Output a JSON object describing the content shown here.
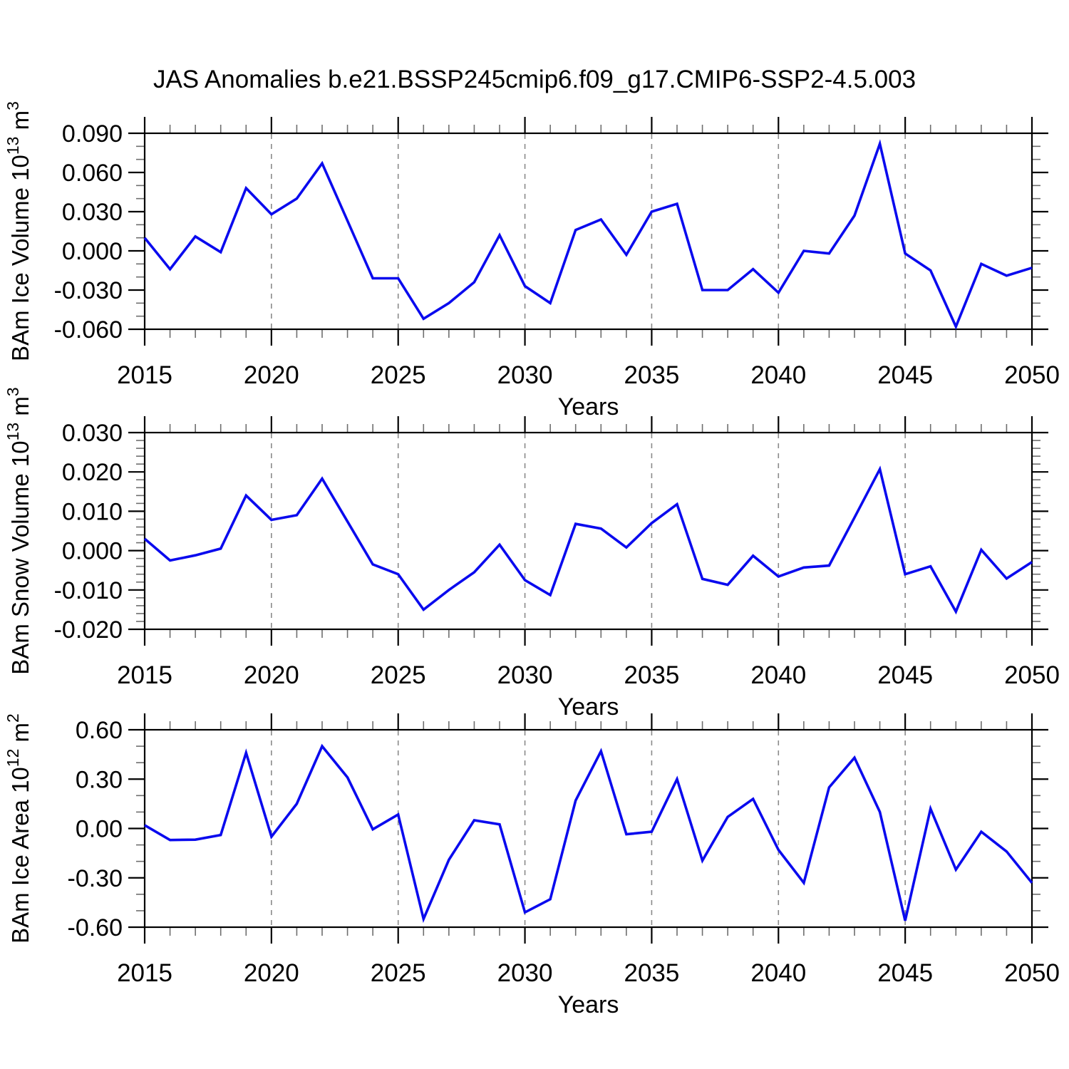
{
  "title": "JAS Anomalies b.e21.BSSP245cmip6.f09_g17.CMIP6-SSP2-4.5.003",
  "style": {
    "line_color": "#0A0AEE",
    "grid_color": "#8a8a8a",
    "axis_color": "#000000",
    "minor_tick_color": "#6e6e6e",
    "text_color": "#000000",
    "background": "#ffffff"
  },
  "chart_data": {
    "type": "line",
    "x_label": "Years",
    "x": [
      2015,
      2016,
      2017,
      2018,
      2019,
      2020,
      2021,
      2022,
      2023,
      2024,
      2025,
      2026,
      2027,
      2028,
      2029,
      2030,
      2031,
      2032,
      2033,
      2034,
      2035,
      2036,
      2037,
      2038,
      2039,
      2040,
      2041,
      2042,
      2043,
      2044,
      2045,
      2046,
      2047,
      2048,
      2049,
      2050
    ],
    "x_major_ticks": [
      2015,
      2020,
      2025,
      2030,
      2035,
      2040,
      2045,
      2050
    ],
    "grid_x": [
      2020,
      2025,
      2030,
      2035,
      2040,
      2045
    ],
    "grid_style": "dashed-vertical",
    "legend": "none",
    "panels": [
      {
        "id": "bam-ice-volume",
        "ylabel": "BAm Ice Volume 10^13^ m^3^",
        "ylim": [
          -0.06,
          0.09
        ],
        "ytick_step": 0.03,
        "yminor_step": 0.01,
        "ytick_labels": [
          "0.090",
          "0.060",
          "0.030",
          "0.000",
          "-0.030",
          "-0.060"
        ],
        "values": [
          0.01,
          -0.014,
          0.011,
          -0.001,
          0.048,
          0.028,
          0.04,
          0.067,
          0.023,
          -0.021,
          -0.021,
          -0.052,
          -0.04,
          -0.024,
          0.012,
          -0.027,
          -0.04,
          0.016,
          0.024,
          -0.003,
          0.03,
          0.036,
          -0.03,
          -0.03,
          -0.014,
          -0.032,
          0.0,
          -0.002,
          0.027,
          0.082,
          -0.002,
          -0.015,
          -0.058,
          -0.01,
          -0.019,
          -0.013
        ]
      },
      {
        "id": "bam-snow-volume",
        "ylabel": "BAm Snow Volume 10^13^ m^3^",
        "ylim": [
          -0.02,
          0.03
        ],
        "ytick_step": 0.01,
        "yminor_step": 0.002,
        "ytick_labels": [
          "0.030",
          "0.020",
          "0.010",
          "0.000",
          "-0.010",
          "-0.020"
        ],
        "values": [
          0.003,
          -0.0025,
          -0.0012,
          0.0005,
          0.014,
          0.0078,
          0.009,
          0.0183,
          0.0074,
          -0.0035,
          -0.006,
          -0.015,
          -0.01,
          -0.0055,
          0.0015,
          -0.0075,
          -0.0113,
          0.0068,
          0.0056,
          0.0008,
          0.007,
          0.0118,
          -0.0072,
          -0.0087,
          -0.0013,
          -0.0066,
          -0.0043,
          -0.0038,
          0.0084,
          0.0207,
          -0.006,
          -0.004,
          -0.0155,
          0.0002,
          -0.0071,
          -0.0029
        ]
      },
      {
        "id": "bam-ice-area",
        "ylabel": "BAm Ice Area 10^12^ m^2^",
        "ylim": [
          -0.6,
          0.6
        ],
        "ytick_step": 0.3,
        "yminor_step": 0.1,
        "ytick_labels": [
          "0.60",
          "0.30",
          "0.00",
          "-0.30",
          "-0.60"
        ],
        "values": [
          0.02,
          -0.07,
          -0.068,
          -0.04,
          0.46,
          -0.05,
          0.15,
          0.5,
          0.31,
          -0.005,
          0.085,
          -0.55,
          -0.19,
          0.05,
          0.025,
          -0.51,
          -0.43,
          0.17,
          0.47,
          -0.035,
          -0.02,
          0.3,
          -0.195,
          0.07,
          0.18,
          -0.13,
          -0.33,
          0.25,
          0.43,
          0.1,
          -0.56,
          0.12,
          -0.25,
          -0.02,
          -0.14,
          -0.33
        ]
      }
    ]
  }
}
